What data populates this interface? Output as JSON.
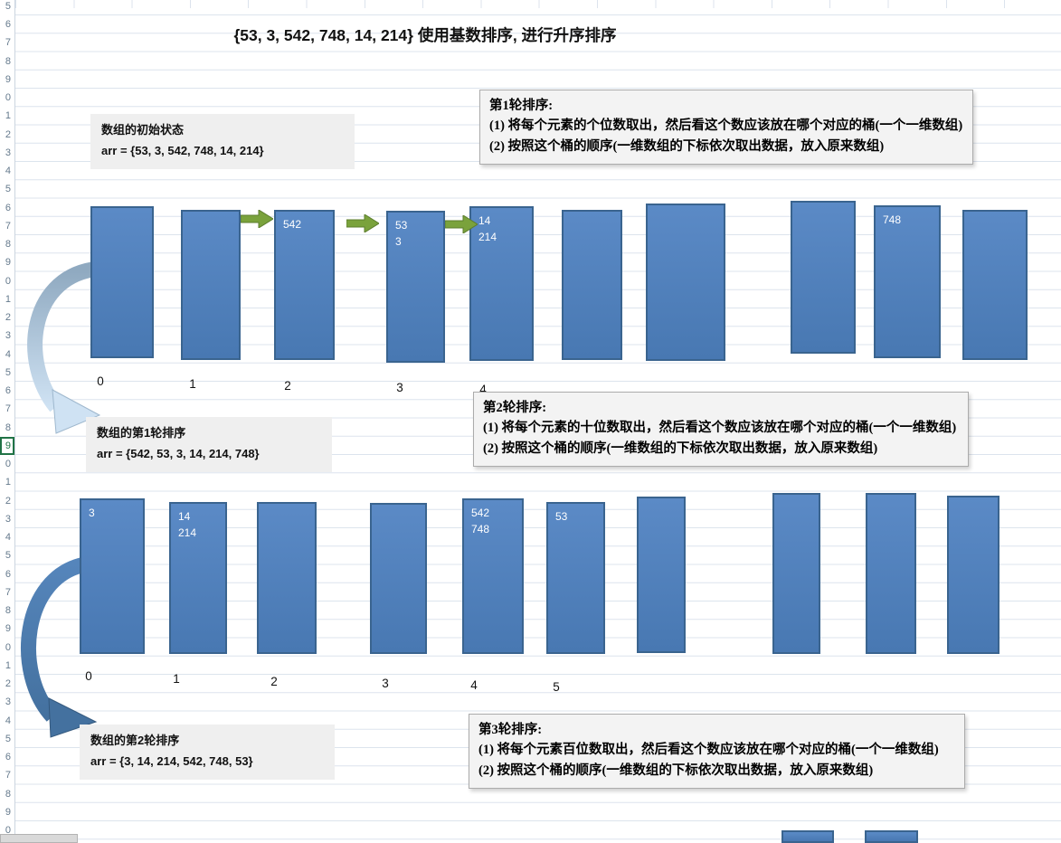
{
  "title": "{53, 3, 542, 748, 14, 214} 使用基数排序, 进行升序排序",
  "row_header": {
    "digits": [
      "5",
      "6",
      "7",
      "8",
      "9",
      "0",
      "1",
      "2",
      "3",
      "4",
      "5",
      "6",
      "7",
      "8",
      "9",
      "0",
      "1",
      "2",
      "3",
      "4",
      "5",
      "6",
      "7",
      "8",
      "9",
      "0",
      "1",
      "2",
      "3",
      "4",
      "5",
      "6",
      "7",
      "8",
      "9",
      "0",
      "1",
      "2",
      "3",
      "4",
      "5",
      "6",
      "7",
      "8",
      "9",
      "0"
    ],
    "selected_index": 24
  },
  "state1": {
    "line1": "数组的初始状态",
    "line2": "arr = {53, 3, 542, 748, 14, 214}"
  },
  "state2": {
    "line1": "数组的第1轮排序",
    "line2": "arr = {542, 53, 3, 14, 214, 748}"
  },
  "state3": {
    "line1": "数组的第2轮排序",
    "line2": "arr = {3, 14, 214, 542, 748, 53}"
  },
  "note1": {
    "title": "第1轮排序:",
    "line1": "(1) 将每个元素的个位数取出，然后看这个数应该放在哪个对应的桶(一个一维数组)",
    "line2": "(2) 按照这个桶的顺序(一维数组的下标依次取出数据，放入原来数组)"
  },
  "note2": {
    "title": "第2轮排序:",
    "line1": "(1) 将每个元素的十位数取出，然后看这个数应该放在哪个对应的桶(一个一维数组)",
    "line2": "(2) 按照这个桶的顺序(一维数组的下标依次取出数据，放入原来数组)"
  },
  "note3": {
    "title": "第3轮排序:",
    "line1": "(1) 将每个元素百位数取出，然后看这个数应该放在哪个对应的桶(一个一维数组)",
    "line2": "(2) 按照这个桶的顺序(一维数组的下标依次取出数据，放入原来数组)"
  },
  "round1": {
    "bars": [
      "",
      "",
      "542",
      "53\n3",
      "14\n214",
      "",
      "",
      "",
      "748",
      ""
    ],
    "indices": [
      "0",
      "1",
      "2",
      "3",
      "4"
    ]
  },
  "round2": {
    "bars": [
      "3",
      "14\n214",
      "",
      "",
      "542\n748",
      "53",
      "",
      "",
      "",
      ""
    ],
    "indices": [
      "0",
      "1",
      "2",
      "3",
      "4",
      "5"
    ]
  },
  "colors": {
    "bar_fill": "#4f81bd",
    "bar_border": "#3a648f",
    "arrow_green": "#7aa23c",
    "grid_line": "#dce3ed",
    "note_bg": "#f3f3f3",
    "state_bg": "#efefef",
    "select_green": "#217346"
  }
}
